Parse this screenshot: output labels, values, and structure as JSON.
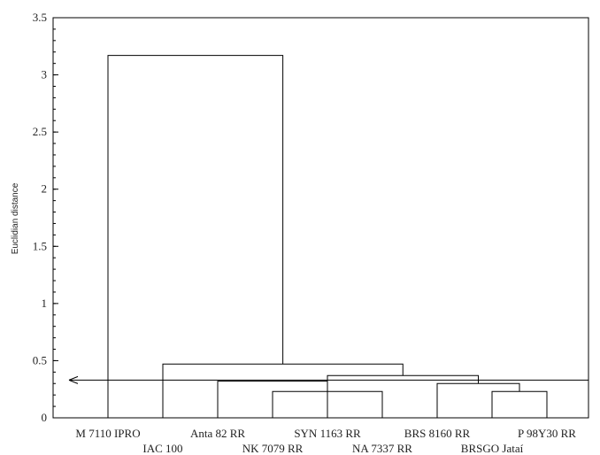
{
  "chart_data": {
    "type": "dendrogram",
    "ylabel": "Euclidian distance",
    "ylim": [
      0,
      3.5
    ],
    "yticks": [
      0,
      0.5,
      1,
      1.5,
      2,
      2.5,
      3,
      3.5
    ],
    "ytick_labels": [
      "0",
      "0.5",
      "1",
      "1.5",
      "2",
      "2.5",
      "3",
      "3.5"
    ],
    "minor_tick_step": 0.1,
    "leaves": [
      "M 7110 IPRO",
      "IAC 100",
      "Anta 82 RR",
      "NK 7079 RR",
      "SYN 1163 RR",
      "NA 7337 RR",
      "BRS 8160 RR",
      "BRSGO Jataí",
      "P 98Y30 RR"
    ],
    "merges": [
      {
        "left": "NK 7079 RR",
        "right": "NA 7337 RR",
        "height": 0.23
      },
      {
        "left": "BRSGO Jataí",
        "right": "P 98Y30 RR",
        "height": 0.23
      },
      {
        "left": "BRS 8160 RR",
        "right": "BRSGO Jataí",
        "height": 0.3
      },
      {
        "left": "Anta 82 RR",
        "right": "NK 7079 RR",
        "height": 0.32
      },
      {
        "left": "SYN 1163 RR",
        "right": "BRS 8160 RR",
        "height": 0.37
      },
      {
        "left": "IAC 100",
        "right": "SYN 1163 RR",
        "height": 0.47
      },
      {
        "left": "M 7110 IPRO",
        "right": "IAC 100",
        "height": 3.17
      }
    ],
    "cut_line": 0.33
  }
}
